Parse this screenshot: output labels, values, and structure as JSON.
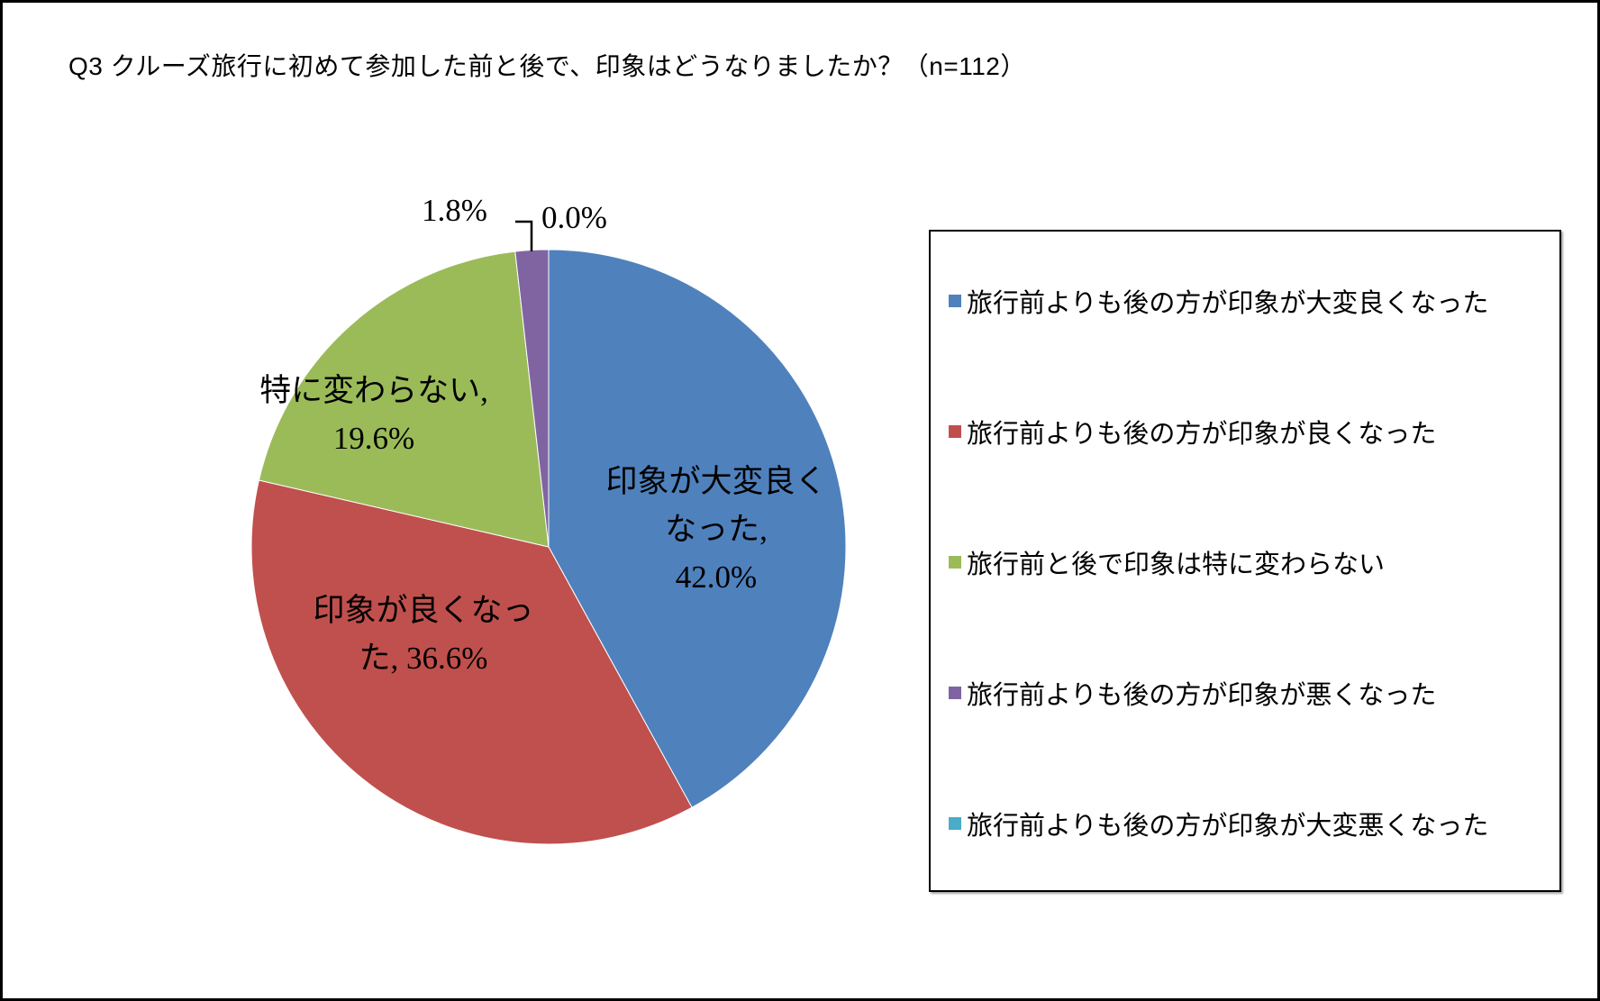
{
  "title": "Q3 クルーズ旅行に初めて参加した前と後で、印象はどうなりましたか？（n=112）",
  "chart_data": {
    "type": "pie",
    "title": "Q3 クルーズ旅行に初めて参加した前と後で、印象はどうなりましたか？（n=112）",
    "n": 112,
    "categories": [
      "旅行前よりも後の方が印象が大変良くなった",
      "旅行前よりも後の方が印象が良くなった",
      "旅行前と後で印象は特に変わらない",
      "旅行前よりも後の方が印象が悪くなった",
      "旅行前よりも後の方が印象が大変悪くなった"
    ],
    "values": [
      42.0,
      36.6,
      19.6,
      1.8,
      0.0
    ],
    "unit": "%",
    "colors": [
      "#4F81BD",
      "#C0504D",
      "#9BBB59",
      "#8064A2",
      "#4BACC6"
    ],
    "data_labels": [
      "印象が大変良くなった, 42.0%",
      "印象が良くなった, 36.6%",
      "特に変わらない, 19.6%",
      "1.8%",
      "0.0%"
    ],
    "legend_position": "right",
    "start_angle": "12 o'clock, clockwise"
  },
  "labels": {
    "slice0": {
      "line1": "印象が大変良く",
      "line2": "なった,",
      "line3": "42.0%"
    },
    "slice1": {
      "line1": "印象が良くなっ",
      "line2": "た, 36.6%"
    },
    "slice2": {
      "line1": "特に変わらない,",
      "line2": "19.6%"
    },
    "slice3": {
      "text": "1.8%"
    },
    "slice4": {
      "text": "0.0%"
    }
  },
  "legend": {
    "items": [
      {
        "label": "旅行前よりも後の方が印象が大変良くなった",
        "color": "#4F81BD"
      },
      {
        "label": "旅行前よりも後の方が印象が良くなった",
        "color": "#C0504D"
      },
      {
        "label": "旅行前と後で印象は特に変わらない",
        "color": "#9BBB59"
      },
      {
        "label": "旅行前よりも後の方が印象が悪くなった",
        "color": "#8064A2"
      },
      {
        "label": "旅行前よりも後の方が印象が大変悪くなった",
        "color": "#4BACC6"
      }
    ]
  }
}
